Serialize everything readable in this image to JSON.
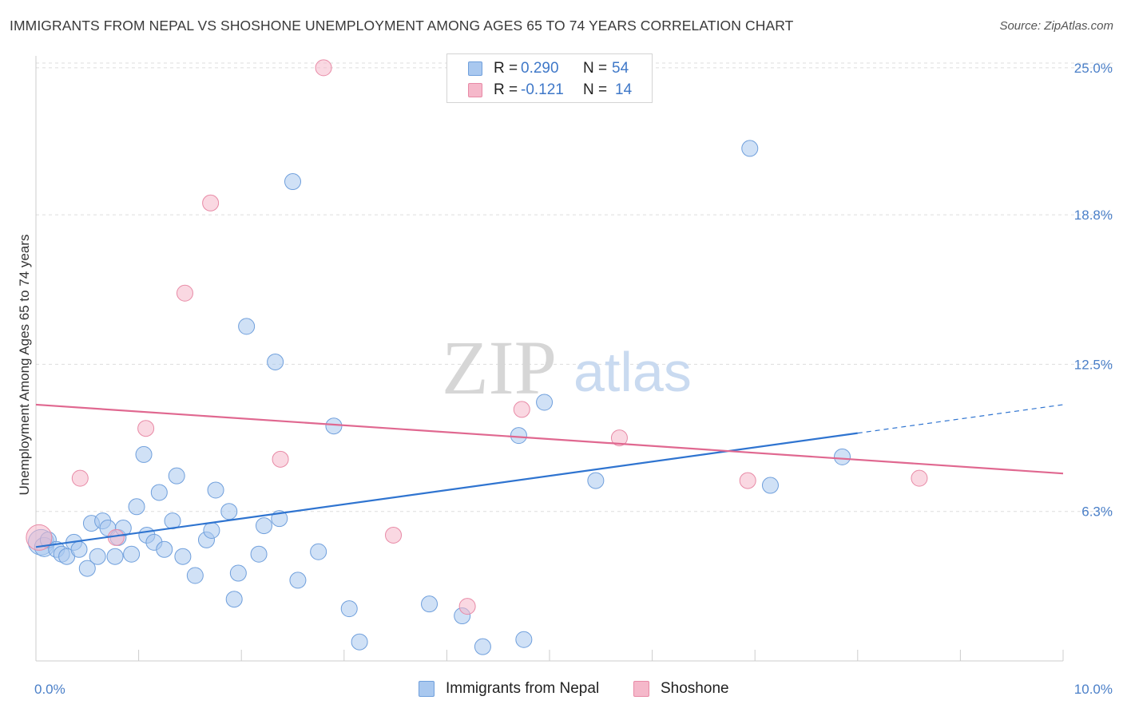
{
  "title": "IMMIGRANTS FROM NEPAL VS SHOSHONE UNEMPLOYMENT AMONG AGES 65 TO 74 YEARS CORRELATION CHART",
  "source": "Source: ZipAtlas.com",
  "watermark": {
    "zip": "ZIP",
    "atlas": "atlas"
  },
  "legend": {
    "rows": [
      {
        "r_label": "R =",
        "r_value": "0.290",
        "n_label": "N =",
        "n_value": "54",
        "color": "#a9c8ef"
      },
      {
        "r_label": "R =",
        "r_value": "-0.121",
        "n_label": "N =",
        "n_value": "14",
        "color": "#f5b8ca"
      }
    ]
  },
  "bottom_legend": [
    {
      "label": "Immigrants from Nepal",
      "color": "#a9c8ef"
    },
    {
      "label": "Shoshone",
      "color": "#f5b8ca"
    }
  ],
  "chart_data": {
    "type": "scatter",
    "title": "IMMIGRANTS FROM NEPAL VS SHOSHONE UNEMPLOYMENT AMONG AGES 65 TO 74 YEARS CORRELATION CHART",
    "xlabel": "",
    "ylabel": "Unemployment Among Ages 65 to 74 years",
    "xlim": [
      0,
      10
    ],
    "ylim": [
      0,
      25.5
    ],
    "x_tick_labels": [
      "0.0%",
      "10.0%"
    ],
    "y_ticks": [
      6.3,
      12.5,
      18.8,
      25.0
    ],
    "y_tick_labels": [
      "6.3%",
      "12.5%",
      "18.8%",
      "25.0%"
    ],
    "grid": true,
    "series": [
      {
        "name": "Immigrants from Nepal",
        "color": "#a9c8ef",
        "stroke": "#6f9fdc",
        "trend_color": "#2f74d0",
        "trend": {
          "x0": 0,
          "y0": 4.8,
          "x1": 8.0,
          "y1": 9.6,
          "dash_to_x": 10.0,
          "dash_to_y": 10.8
        },
        "points": [
          [
            0.05,
            5.0,
            16
          ],
          [
            0.08,
            4.8,
            12
          ],
          [
            0.12,
            5.1,
            10
          ],
          [
            0.2,
            4.7,
            10
          ],
          [
            0.25,
            4.5,
            10
          ],
          [
            0.3,
            4.4,
            10
          ],
          [
            0.37,
            5.0,
            10
          ],
          [
            0.42,
            4.7,
            10
          ],
          [
            0.5,
            3.9,
            10
          ],
          [
            0.54,
            5.8,
            10
          ],
          [
            0.6,
            4.4,
            10
          ],
          [
            0.65,
            5.9,
            10
          ],
          [
            0.7,
            5.6,
            10
          ],
          [
            0.77,
            4.4,
            10
          ],
          [
            0.8,
            5.2,
            10
          ],
          [
            0.85,
            5.6,
            10
          ],
          [
            0.93,
            4.5,
            10
          ],
          [
            0.98,
            6.5,
            10
          ],
          [
            1.05,
            8.7,
            10
          ],
          [
            1.08,
            5.3,
            10
          ],
          [
            1.15,
            5.0,
            10
          ],
          [
            1.2,
            7.1,
            10
          ],
          [
            1.25,
            4.7,
            10
          ],
          [
            1.33,
            5.9,
            10
          ],
          [
            1.37,
            7.8,
            10
          ],
          [
            1.43,
            4.4,
            10
          ],
          [
            1.55,
            3.6,
            10
          ],
          [
            1.66,
            5.1,
            10
          ],
          [
            1.71,
            5.5,
            10
          ],
          [
            1.75,
            7.2,
            10
          ],
          [
            1.88,
            6.3,
            10
          ],
          [
            1.93,
            2.6,
            10
          ],
          [
            1.97,
            3.7,
            10
          ],
          [
            2.05,
            14.1,
            10
          ],
          [
            2.17,
            4.5,
            10
          ],
          [
            2.22,
            5.7,
            10
          ],
          [
            2.33,
            12.6,
            10
          ],
          [
            2.37,
            6.0,
            10
          ],
          [
            2.5,
            20.2,
            10
          ],
          [
            2.55,
            3.4,
            10
          ],
          [
            2.75,
            4.6,
            10
          ],
          [
            2.9,
            9.9,
            10
          ],
          [
            3.05,
            2.2,
            10
          ],
          [
            3.15,
            0.8,
            10
          ],
          [
            3.83,
            2.4,
            10
          ],
          [
            4.15,
            1.9,
            10
          ],
          [
            4.35,
            0.6,
            10
          ],
          [
            4.7,
            9.5,
            10
          ],
          [
            4.75,
            0.9,
            10
          ],
          [
            4.95,
            10.9,
            10
          ],
          [
            5.45,
            7.6,
            10
          ],
          [
            6.95,
            21.6,
            10
          ],
          [
            7.15,
            7.4,
            10
          ],
          [
            7.85,
            8.6,
            10
          ]
        ]
      },
      {
        "name": "Shoshone",
        "color": "#f5b8ca",
        "stroke": "#e88aa6",
        "trend_color": "#e06890",
        "trend": {
          "x0": 0,
          "y0": 10.8,
          "x1": 10.0,
          "y1": 7.9
        },
        "points": [
          [
            0.03,
            5.2,
            16
          ],
          [
            0.43,
            7.7,
            10
          ],
          [
            0.78,
            5.2,
            10
          ],
          [
            1.07,
            9.8,
            10
          ],
          [
            1.45,
            15.5,
            10
          ],
          [
            1.7,
            19.3,
            10
          ],
          [
            2.38,
            8.5,
            10
          ],
          [
            2.8,
            25.0,
            10
          ],
          [
            3.48,
            5.3,
            10
          ],
          [
            4.2,
            2.3,
            10
          ],
          [
            4.73,
            10.6,
            10
          ],
          [
            5.68,
            9.4,
            10
          ],
          [
            6.93,
            7.6,
            10
          ],
          [
            8.6,
            7.7,
            10
          ]
        ]
      }
    ]
  }
}
